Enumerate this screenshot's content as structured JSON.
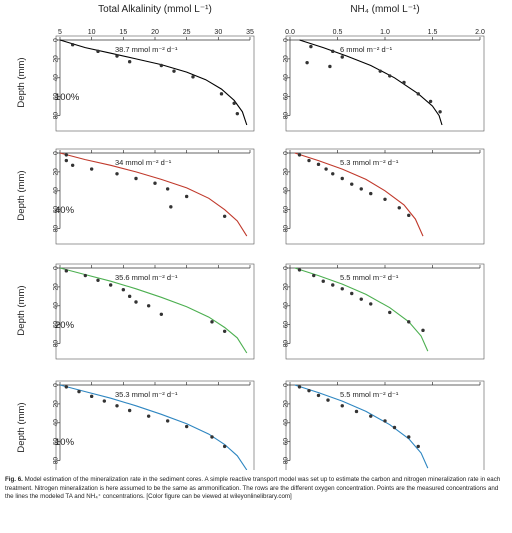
{
  "figure": {
    "col_titles": [
      "Total Alkalinity (mmol L⁻¹)",
      "NH₄ (mmol L⁻¹)"
    ],
    "ylabel": "Depth (mm)"
  },
  "caption": {
    "label": "Fig. 6.",
    "text": "Model estimation of the mineralization rate in the sediment cores. A simple reactive transport model was set up to estimate the carbon and nitrogen mineralization rate in each treatment. Nitrogen mineralization is here assumed to be the same as ammonification. The rows are the different oxygen concentration. Points are the measured concentrations and the lines the modeled TA and NH₄⁺ concentrations. [Color figure can be viewed at wileyonlinelibrary.com]"
  },
  "chart_data": [
    {
      "type": "scatter",
      "panel": "TA-100%",
      "treatment": "100%",
      "color": "#000000",
      "rate_label": "38.7 mmol m⁻² d⁻¹",
      "xlabel": "Total Alkalinity (mmol L⁻¹)",
      "ylabel": "Depth (mm)",
      "xlim": [
        5,
        35
      ],
      "ylim": [
        0,
        90
      ],
      "xticks": [
        5,
        10,
        15,
        20,
        25,
        30,
        35
      ],
      "yticks": [
        0,
        20,
        40,
        60,
        80
      ],
      "points": [
        [
          7,
          5
        ],
        [
          11,
          12
        ],
        [
          14,
          17
        ],
        [
          16,
          23
        ],
        [
          21,
          27
        ],
        [
          23,
          33
        ],
        [
          26,
          39
        ],
        [
          30.5,
          57
        ],
        [
          32.5,
          67
        ],
        [
          33,
          78
        ]
      ],
      "model": [
        [
          5,
          0
        ],
        [
          9,
          8
        ],
        [
          13,
          14
        ],
        [
          17,
          20
        ],
        [
          21,
          26
        ],
        [
          25,
          34
        ],
        [
          28,
          42
        ],
        [
          30.5,
          52
        ],
        [
          32.5,
          64
        ],
        [
          33.8,
          76
        ],
        [
          34.5,
          90
        ]
      ]
    },
    {
      "type": "scatter",
      "panel": "NH4-100%",
      "treatment": "100%",
      "color": "#000000",
      "rate_label": "6 mmol m⁻² d⁻¹",
      "xlabel": "NH₄ (mmol L⁻¹)",
      "ylabel": "Depth (mm)",
      "xlim": [
        0,
        2
      ],
      "ylim": [
        0,
        90
      ],
      "xticks": [
        0.0,
        0.5,
        1.0,
        1.5,
        2.0
      ],
      "yticks": [
        0,
        20,
        40,
        60,
        80
      ],
      "points": [
        [
          0.22,
          7
        ],
        [
          0.45,
          12
        ],
        [
          0.18,
          24
        ],
        [
          0.42,
          28
        ],
        [
          0.55,
          18
        ],
        [
          0.95,
          33
        ],
        [
          1.05,
          38
        ],
        [
          1.2,
          45
        ],
        [
          1.35,
          57
        ],
        [
          1.48,
          65
        ],
        [
          1.58,
          76
        ]
      ],
      "model": [
        [
          0.1,
          0
        ],
        [
          0.35,
          8
        ],
        [
          0.6,
          17
        ],
        [
          0.85,
          27
        ],
        [
          1.1,
          40
        ],
        [
          1.35,
          57
        ],
        [
          1.5,
          70
        ],
        [
          1.57,
          80
        ],
        [
          1.6,
          90
        ]
      ]
    },
    {
      "type": "scatter",
      "panel": "TA-40%",
      "treatment": "40%",
      "color": "#c0392b",
      "rate_label": "34 mmol m⁻² d⁻¹",
      "xlabel": "Total Alkalinity (mmol L⁻¹)",
      "ylabel": "Depth (mm)",
      "xlim": [
        5,
        35
      ],
      "ylim": [
        0,
        90
      ],
      "xticks": [
        5,
        10,
        15,
        20,
        25,
        30,
        35
      ],
      "yticks": [
        0,
        20,
        40,
        60,
        80
      ],
      "points": [
        [
          6,
          2
        ],
        [
          6,
          8
        ],
        [
          7,
          13
        ],
        [
          10,
          17
        ],
        [
          14,
          22
        ],
        [
          17,
          27
        ],
        [
          20,
          32
        ],
        [
          22,
          38
        ],
        [
          25,
          46
        ],
        [
          22.5,
          57
        ],
        [
          31,
          67
        ]
      ],
      "model": [
        [
          5,
          0
        ],
        [
          9,
          7
        ],
        [
          13,
          13
        ],
        [
          17,
          20
        ],
        [
          21,
          28
        ],
        [
          25,
          37
        ],
        [
          28.5,
          48
        ],
        [
          31,
          60
        ],
        [
          33,
          72
        ],
        [
          34.5,
          88
        ]
      ]
    },
    {
      "type": "scatter",
      "panel": "NH4-40%",
      "treatment": "40%",
      "color": "#c0392b",
      "rate_label": "5.3 mmol m⁻² d⁻¹",
      "xlabel": "NH₄ (mmol L⁻¹)",
      "ylabel": "Depth (mm)",
      "xlim": [
        0,
        2
      ],
      "ylim": [
        0,
        90
      ],
      "xticks": [
        0.0,
        0.5,
        1.0,
        1.5,
        2.0
      ],
      "yticks": [
        0,
        20,
        40,
        60,
        80
      ],
      "points": [
        [
          0.1,
          2
        ],
        [
          0.2,
          8
        ],
        [
          0.3,
          12
        ],
        [
          0.38,
          17
        ],
        [
          0.45,
          22
        ],
        [
          0.55,
          27
        ],
        [
          0.65,
          33
        ],
        [
          0.75,
          38
        ],
        [
          0.85,
          43
        ],
        [
          1.0,
          49
        ],
        [
          1.15,
          58
        ],
        [
          1.25,
          66
        ]
      ],
      "model": [
        [
          0.05,
          0
        ],
        [
          0.3,
          8
        ],
        [
          0.55,
          17
        ],
        [
          0.8,
          28
        ],
        [
          1.0,
          40
        ],
        [
          1.2,
          55
        ],
        [
          1.32,
          70
        ],
        [
          1.4,
          88
        ]
      ]
    },
    {
      "type": "scatter",
      "panel": "TA-20%",
      "treatment": "20%",
      "color": "#4caf50",
      "rate_label": "35.6 mmol m⁻² d⁻¹",
      "xlabel": "Total Alkalinity (mmol L⁻¹)",
      "ylabel": "Depth (mm)",
      "xlim": [
        5,
        35
      ],
      "ylim": [
        0,
        90
      ],
      "xticks": [
        5,
        10,
        15,
        20,
        25,
        30,
        35
      ],
      "yticks": [
        0,
        20,
        40,
        60,
        80
      ],
      "points": [
        [
          6,
          3
        ],
        [
          9,
          8
        ],
        [
          11,
          13
        ],
        [
          13,
          18
        ],
        [
          15,
          23
        ],
        [
          16,
          30
        ],
        [
          17,
          36
        ],
        [
          19,
          40
        ],
        [
          21,
          49
        ],
        [
          29,
          57
        ],
        [
          31,
          67
        ]
      ],
      "model": [
        [
          5,
          0
        ],
        [
          9,
          7
        ],
        [
          13,
          14
        ],
        [
          17,
          22
        ],
        [
          21,
          31
        ],
        [
          25,
          41
        ],
        [
          28.5,
          52
        ],
        [
          31,
          63
        ],
        [
          33,
          74
        ],
        [
          34.5,
          90
        ]
      ]
    },
    {
      "type": "scatter",
      "panel": "NH4-20%",
      "treatment": "20%",
      "color": "#4caf50",
      "rate_label": "5.5 mmol m⁻² d⁻¹",
      "xlabel": "NH₄ (mmol L⁻¹)",
      "ylabel": "Depth (mm)",
      "xlim": [
        0,
        2
      ],
      "ylim": [
        0,
        90
      ],
      "xticks": [
        0.0,
        0.5,
        1.0,
        1.5,
        2.0
      ],
      "yticks": [
        0,
        20,
        40,
        60,
        80
      ],
      "points": [
        [
          0.1,
          2
        ],
        [
          0.25,
          8
        ],
        [
          0.35,
          14
        ],
        [
          0.45,
          18
        ],
        [
          0.55,
          22
        ],
        [
          0.65,
          27
        ],
        [
          0.75,
          33
        ],
        [
          0.85,
          38
        ],
        [
          1.05,
          47
        ],
        [
          1.25,
          57
        ],
        [
          1.4,
          66
        ]
      ],
      "model": [
        [
          0.05,
          0
        ],
        [
          0.3,
          8
        ],
        [
          0.55,
          17
        ],
        [
          0.8,
          28
        ],
        [
          1.05,
          42
        ],
        [
          1.25,
          57
        ],
        [
          1.38,
          72
        ],
        [
          1.45,
          88
        ]
      ]
    },
    {
      "type": "scatter",
      "panel": "TA-10%",
      "treatment": "10%",
      "color": "#2e86c1",
      "rate_label": "35.3 mmol m⁻² d⁻¹",
      "xlabel": "Total Alkalinity (mmol L⁻¹)",
      "ylabel": "Depth (mm)",
      "xlim": [
        5,
        35
      ],
      "ylim": [
        0,
        90
      ],
      "xticks": [
        5,
        10,
        15,
        20,
        25,
        30,
        35
      ],
      "yticks": [
        0,
        20,
        40,
        60,
        80
      ],
      "points": [
        [
          6,
          2
        ],
        [
          8,
          7
        ],
        [
          10,
          12
        ],
        [
          12,
          17
        ],
        [
          14,
          22
        ],
        [
          16,
          27
        ],
        [
          19,
          33
        ],
        [
          22,
          38
        ],
        [
          25,
          44
        ],
        [
          29,
          55
        ],
        [
          31,
          65
        ]
      ],
      "model": [
        [
          5,
          0
        ],
        [
          9,
          7
        ],
        [
          13,
          14
        ],
        [
          17,
          22
        ],
        [
          21,
          31
        ],
        [
          25,
          41
        ],
        [
          28.5,
          52
        ],
        [
          31,
          63
        ],
        [
          33,
          75
        ],
        [
          34.5,
          90
        ]
      ]
    },
    {
      "type": "scatter",
      "panel": "NH4-10%",
      "treatment": "10%",
      "color": "#2e86c1",
      "rate_label": "5.5 mmol m⁻² d⁻¹",
      "xlabel": "NH₄ (mmol L⁻¹)",
      "ylabel": "Depth (mm)",
      "xlim": [
        0,
        2
      ],
      "ylim": [
        0,
        90
      ],
      "xticks": [
        0.0,
        0.5,
        1.0,
        1.5,
        2.0
      ],
      "yticks": [
        0,
        20,
        40,
        60,
        80
      ],
      "points": [
        [
          0.1,
          2
        ],
        [
          0.2,
          6
        ],
        [
          0.3,
          11
        ],
        [
          0.4,
          16
        ],
        [
          0.55,
          22
        ],
        [
          0.7,
          28
        ],
        [
          0.85,
          33
        ],
        [
          1.0,
          38
        ],
        [
          1.1,
          45
        ],
        [
          1.25,
          55
        ],
        [
          1.35,
          65
        ]
      ],
      "model": [
        [
          0.05,
          0
        ],
        [
          0.3,
          8
        ],
        [
          0.55,
          17
        ],
        [
          0.8,
          28
        ],
        [
          1.05,
          42
        ],
        [
          1.25,
          57
        ],
        [
          1.38,
          72
        ],
        [
          1.45,
          88
        ]
      ]
    }
  ]
}
